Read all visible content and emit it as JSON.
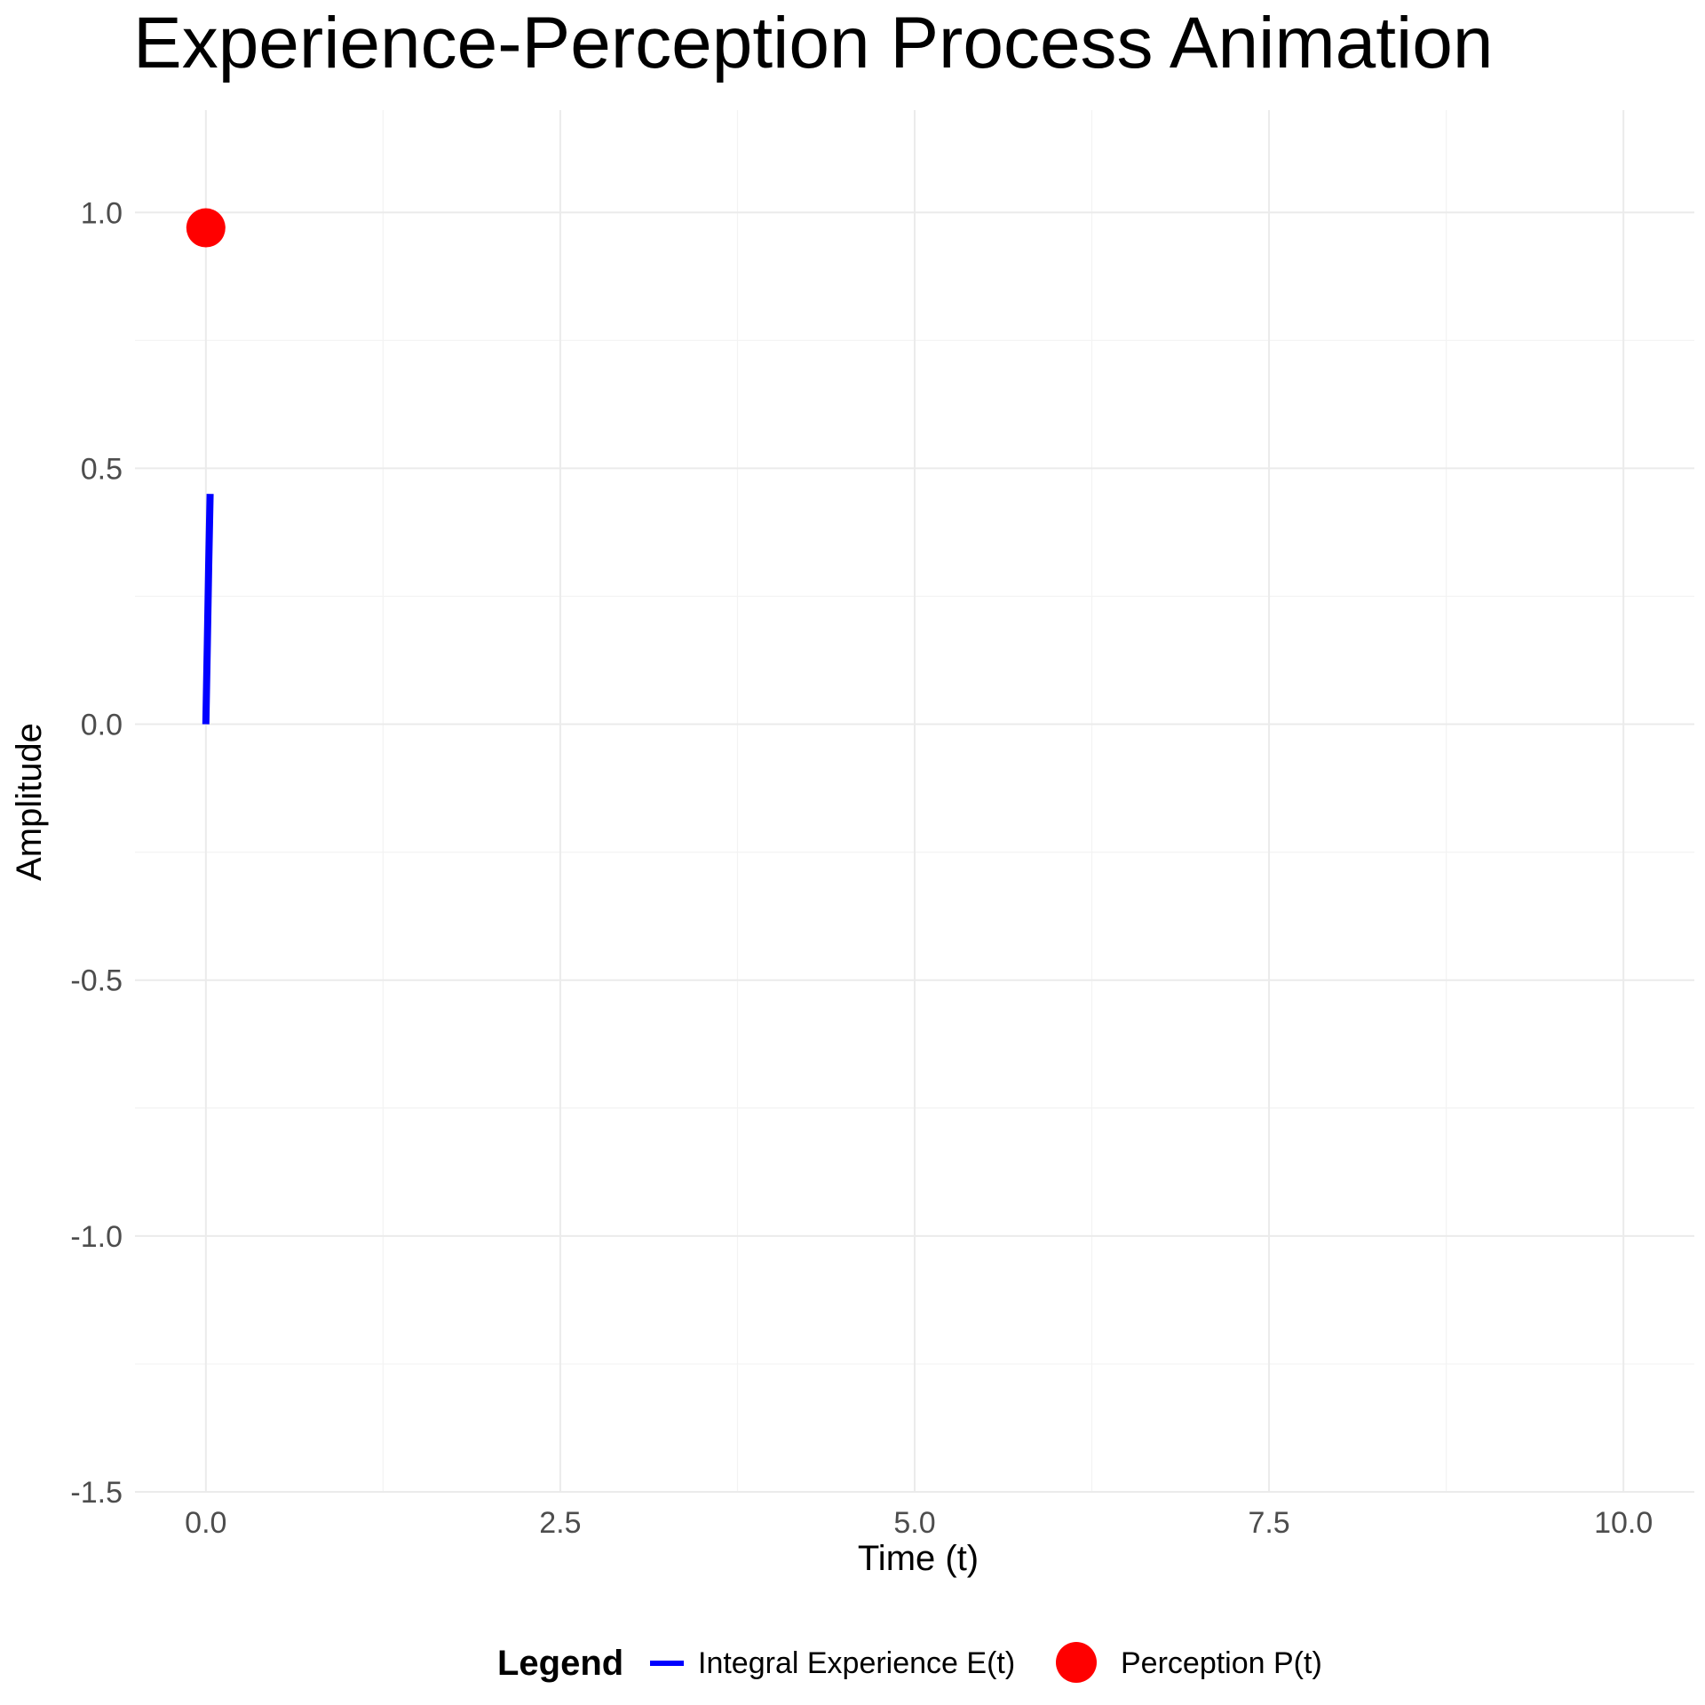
{
  "chart_data": {
    "type": "line",
    "title": "Experience-Perception Process Animation",
    "xlabel": "Time (t)",
    "ylabel": "Amplitude",
    "xlim": [
      -0.5,
      10.5
    ],
    "ylim": [
      -1.5,
      1.2
    ],
    "x_ticks": [
      0.0,
      2.5,
      5.0,
      7.5,
      10.0
    ],
    "x_tick_labels": [
      "0.0",
      "2.5",
      "5.0",
      "7.5",
      "10.0"
    ],
    "y_ticks": [
      -1.5,
      -1.0,
      -0.5,
      0.0,
      0.5,
      1.0
    ],
    "y_tick_labels": [
      "-1.5",
      "-1.0",
      "-0.5",
      "0.0",
      "0.5",
      "1.0"
    ],
    "grid": true,
    "legend_title": "Legend",
    "legend_position": "bottom",
    "series": [
      {
        "name": "Integral Experience E(t)",
        "kind": "line",
        "color": "#0000ff",
        "x": [
          0.0,
          0.01,
          0.02,
          0.03
        ],
        "y": [
          0.0,
          0.15,
          0.31,
          0.45
        ]
      },
      {
        "name": "Perception P(t)",
        "kind": "point",
        "color": "#ff0000",
        "x": [
          0.0
        ],
        "y": [
          0.97
        ]
      }
    ]
  }
}
